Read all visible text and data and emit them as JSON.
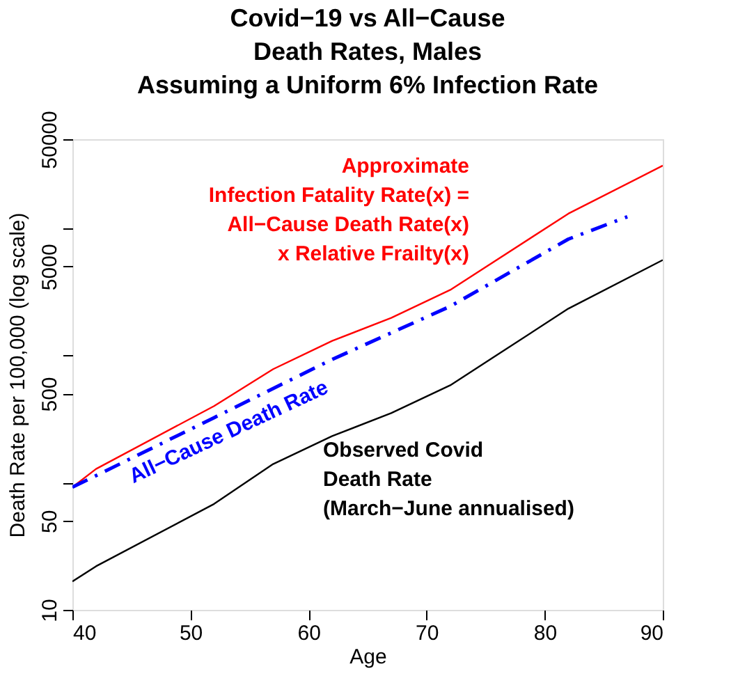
{
  "chart_data": {
    "type": "line",
    "title": "Covid−19 vs All−Cause\nDeath Rates, Males\nAssuming a Uniform 6% Infection Rate",
    "xlabel": "Age",
    "ylabel": "Death Rate per 100,000 (log scale)",
    "log": "y",
    "grid": false,
    "legend": false,
    "marker": "none",
    "xlim": [
      40,
      90
    ],
    "xticks": [
      40,
      50,
      60,
      70,
      80,
      90
    ],
    "ylim": [
      10,
      50000
    ],
    "yticks": [
      10,
      50,
      {
        "value": 100,
        "label": null
      },
      500,
      {
        "value": 1000,
        "label": null
      },
      5000,
      {
        "value": 10000,
        "label": null
      },
      50000
    ],
    "series": [
      {
        "name": "Approximate\nInfection Fatality Rate(x) =\nAll−Cause Death Rate(x)\nx Relative Frailty(x)",
        "color": "#ff0000",
        "line_style": "solid",
        "x": [
          40,
          42,
          52,
          57,
          62,
          67,
          72,
          82,
          90
        ],
        "values": [
          92,
          128,
          400,
          780,
          1300,
          1970,
          3270,
          13000,
          31000
        ]
      },
      {
        "name": "All−Cause Death Rate",
        "color": "#0000ff",
        "line_style": "dashed",
        "x": [
          40,
          52,
          62,
          72,
          82,
          87
        ],
        "values": [
          92,
          324,
          930,
          2430,
          8200,
          12300
        ]
      },
      {
        "name": "Observed Covid\nDeath Rate\n(March−June annualised)",
        "color": "#000000",
        "line_style": "solid",
        "x": [
          40,
          42,
          52,
          57,
          62,
          67,
          72,
          82,
          90
        ],
        "values": [
          16.7,
          22,
          68,
          140,
          232,
          352,
          582,
          2330,
          5620
        ]
      }
    ]
  }
}
